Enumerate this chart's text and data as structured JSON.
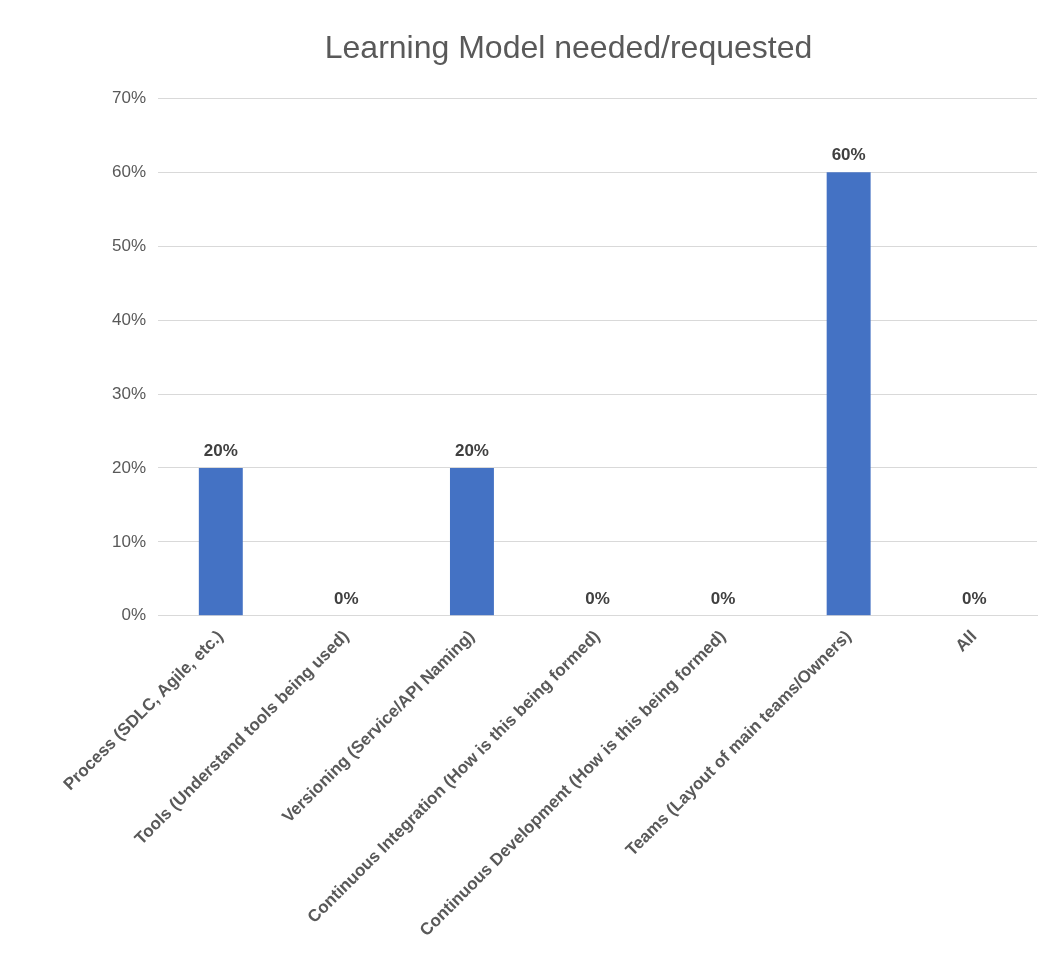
{
  "chart_data": {
    "type": "bar",
    "title": "Learning Model needed/requested",
    "categories": [
      "Process (SDLC, Agile, etc.)",
      "Tools (Understand tools being used)",
      "Versioning (Service/API Naming)",
      "Continuous Integration (How is this being formed)",
      "Continuous Development (How is this being formed)",
      "Teams (Layout of main teams/Owners)",
      "All"
    ],
    "values": [
      20,
      0,
      20,
      0,
      0,
      60,
      0
    ],
    "value_labels": [
      "20%",
      "0%",
      "20%",
      "0%",
      "0%",
      "60%",
      "0%"
    ],
    "color": "#4472c4",
    "ylim": [
      0,
      70
    ],
    "yticks": [
      {
        "value": 0,
        "label": "0%"
      },
      {
        "value": 10,
        "label": "10%"
      },
      {
        "value": 20,
        "label": "20%"
      },
      {
        "value": 30,
        "label": "30%"
      },
      {
        "value": 40,
        "label": "40%"
      },
      {
        "value": 50,
        "label": "50%"
      },
      {
        "value": 60,
        "label": "60%"
      },
      {
        "value": 70,
        "label": "70%"
      }
    ],
    "grid": "y",
    "legend": false
  }
}
